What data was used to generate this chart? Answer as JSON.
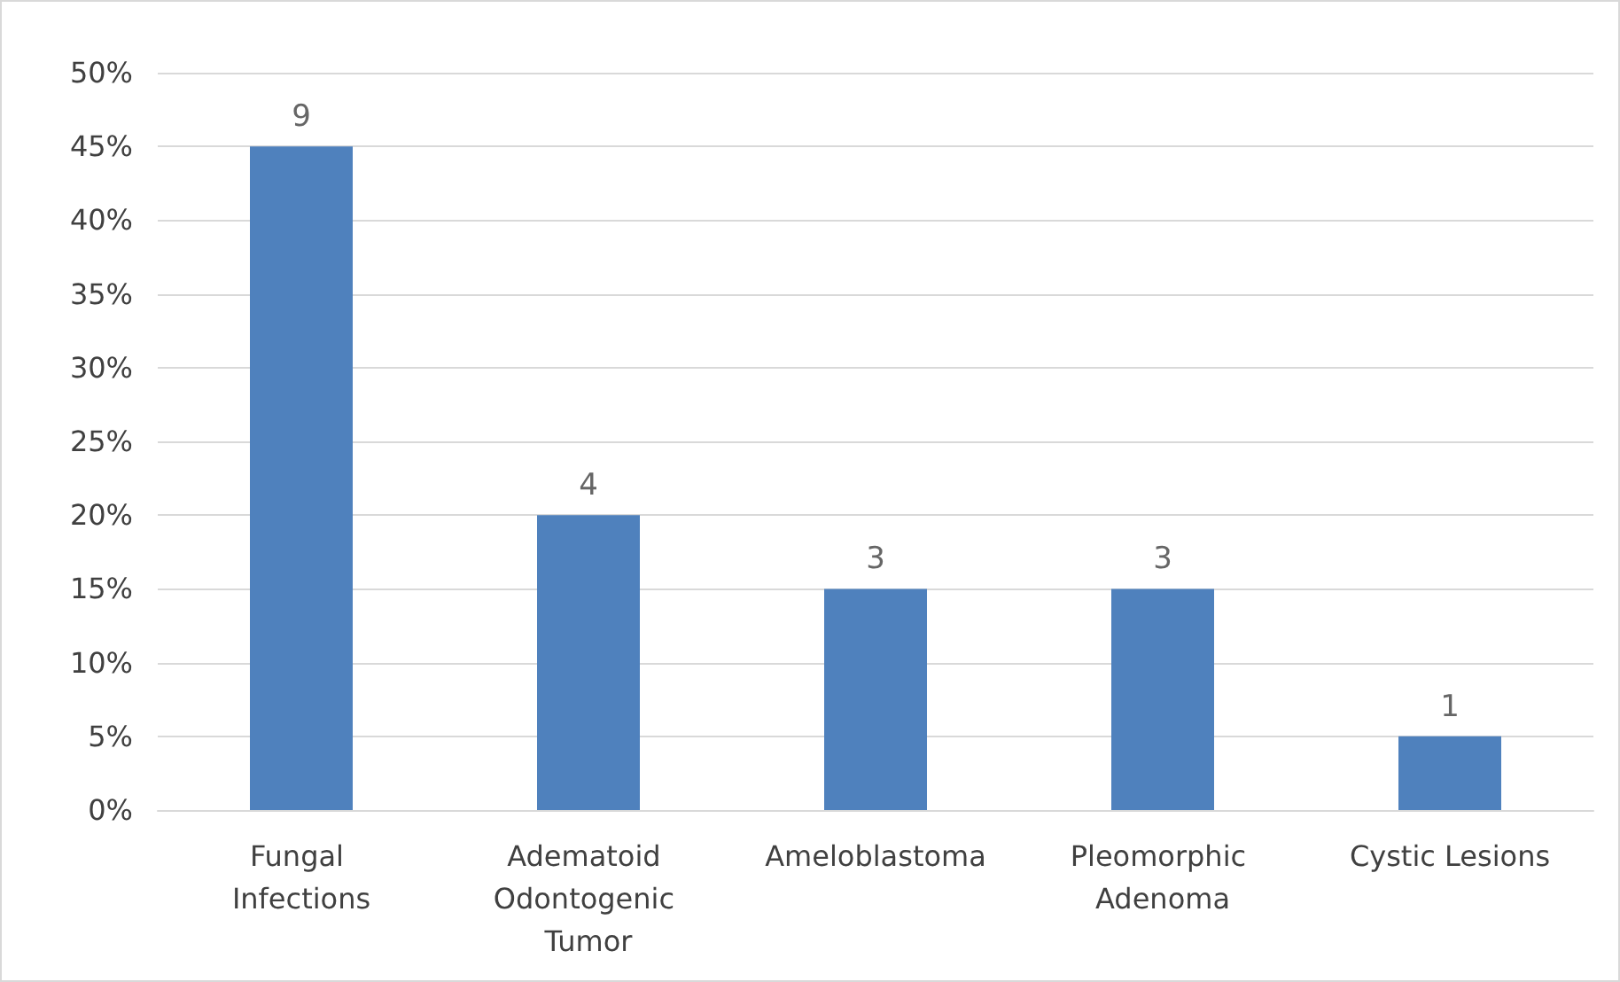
{
  "chart_data": {
    "type": "bar",
    "categories": [
      "Fungal Infections",
      "Adematoid Odontogenic Tumor",
      "Ameloblastoma",
      "Pleomorphic Adenoma",
      "Cystic Lesions"
    ],
    "values": [
      45,
      20,
      15,
      15,
      5
    ],
    "annotations": [
      {
        "text": "9",
        "x": "Fungal Infections",
        "y": 45
      },
      {
        "text": "4",
        "x": "Adematoid Odontogenic Tumor",
        "y": 20
      },
      {
        "text": "3",
        "x": "Ameloblastoma",
        "y": 15
      },
      {
        "text": "3",
        "x": "Pleomorphic Adenoma",
        "y": 15
      },
      {
        "text": "1",
        "x": "Cystic Lesions",
        "y": 5
      }
    ],
    "color": "#4f81bd",
    "ylim": [
      0,
      50
    ],
    "yticks": [
      {
        "value": 0,
        "label": "0%"
      },
      {
        "value": 5,
        "label": "5%"
      },
      {
        "value": 10,
        "label": "10%"
      },
      {
        "value": 15,
        "label": "15%"
      },
      {
        "value": 20,
        "label": "20%"
      },
      {
        "value": 25,
        "label": "25%"
      },
      {
        "value": 30,
        "label": "30%"
      },
      {
        "value": 35,
        "label": "35%"
      },
      {
        "value": 40,
        "label": "40%"
      },
      {
        "value": 45,
        "label": "45%"
      },
      {
        "value": 50,
        "label": "50%"
      }
    ],
    "grid": "y"
  }
}
